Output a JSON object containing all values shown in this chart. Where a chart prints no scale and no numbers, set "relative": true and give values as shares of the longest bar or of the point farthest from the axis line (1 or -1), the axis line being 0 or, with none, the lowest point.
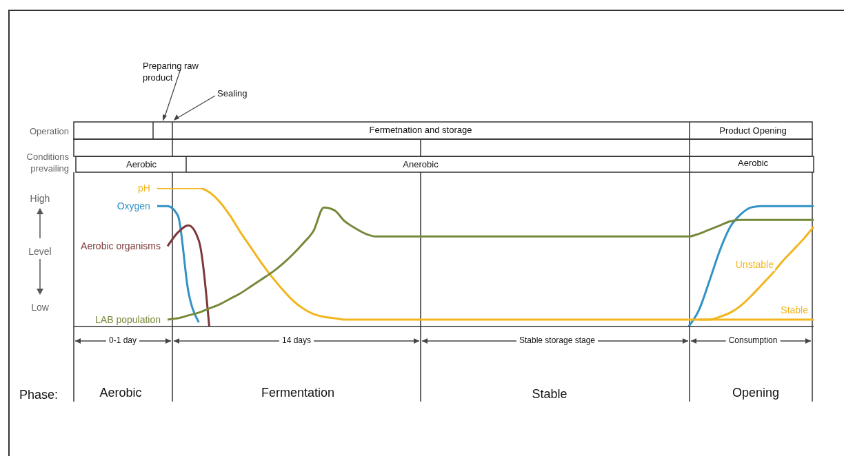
{
  "chart_data": {
    "type": "line",
    "relative": true,
    "ylabel": "Level",
    "legend": false,
    "grid": false,
    "categories": [
      null,
      null,
      null,
      null,
      null,
      null,
      null,
      null,
      null,
      null,
      null,
      null,
      null,
      null,
      null,
      null,
      null,
      null,
      null,
      null,
      null,
      null,
      null,
      null,
      null,
      null,
      null,
      null,
      null,
      null,
      null,
      null,
      null,
      null,
      null,
      null,
      null,
      null,
      null,
      null,
      null,
      null,
      null,
      null,
      null,
      null,
      null,
      null,
      null,
      null,
      null,
      null,
      null,
      null,
      null,
      null,
      null,
      null,
      null,
      null,
      null,
      null,
      null,
      null,
      null,
      null,
      null,
      null,
      null,
      null,
      null,
      null
    ],
    "series": [
      {
        "name": "pH",
        "color": "#f2b51e",
        "values": [
          null,
          null,
          null,
          null,
          null,
          null,
          null,
          null,
          1,
          1,
          1,
          1,
          1,
          0.97,
          0.9,
          0.8,
          0.68,
          0.57,
          0.46,
          0.36,
          0.27,
          0.19,
          0.13,
          0.09,
          0.07,
          0.06,
          0.05,
          0.05,
          0.05,
          0.05,
          0.05,
          0.05,
          0.05,
          0.05,
          0.05,
          0.05,
          0.05,
          0.05,
          0.05,
          0.05,
          0.05,
          0.05,
          0.05,
          0.05,
          0.05,
          0.05,
          0.05,
          0.05,
          0.05,
          0.05,
          0.05,
          0.05,
          0.05,
          0.05,
          0.05,
          0.05,
          0.05,
          0.05,
          0.05,
          0.05,
          null,
          null,
          null,
          null,
          null,
          null,
          null,
          null,
          null,
          null,
          null,
          null
        ]
      },
      {
        "name": "Oxygen",
        "color": "#3192c6",
        "values": [
          null,
          null,
          null,
          null,
          null,
          null,
          null,
          null,
          0.87,
          0.87,
          0.8,
          0.25,
          0.03,
          null,
          null,
          null,
          null,
          null,
          null,
          null,
          null,
          null,
          null,
          null,
          null,
          null,
          null,
          null,
          null,
          null,
          null,
          null,
          null,
          null,
          null,
          null,
          null,
          null,
          null,
          null,
          null,
          null,
          null,
          null,
          null,
          null,
          null,
          null,
          null,
          null,
          null,
          null,
          null,
          null,
          null,
          null,
          null,
          null,
          null,
          0,
          0.12,
          0.33,
          0.55,
          0.72,
          0.81,
          0.86,
          0.87,
          0.87,
          0.87,
          0.87,
          0.87,
          0.87
        ]
      },
      {
        "name": "Aerobic organisms",
        "color": "#7b3838",
        "values": [
          null,
          null,
          null,
          null,
          null,
          null,
          null,
          null,
          null,
          0.58,
          0.68,
          0.73,
          0.62,
          0,
          null,
          null,
          null,
          null,
          null,
          null,
          null,
          null,
          null,
          null,
          null,
          null,
          null,
          null,
          null,
          null,
          null,
          null,
          null,
          null,
          null,
          null,
          null,
          null,
          null,
          null,
          null,
          null,
          null,
          null,
          null,
          null,
          null,
          null,
          null,
          null,
          null,
          null,
          null,
          null,
          null,
          null,
          null,
          null,
          null,
          null,
          null,
          null,
          null,
          null,
          null,
          null,
          null,
          null,
          null,
          null,
          null,
          null
        ]
      },
      {
        "name": "LAB population",
        "color": "#76893a",
        "values": [
          null,
          null,
          null,
          null,
          null,
          null,
          null,
          null,
          null,
          0.05,
          0.06,
          0.08,
          0.1,
          0.13,
          0.16,
          0.2,
          0.24,
          0.29,
          0.34,
          0.39,
          0.45,
          0.52,
          0.6,
          0.69,
          0.86,
          0.84,
          0.76,
          0.71,
          0.67,
          0.65,
          0.65,
          0.65,
          0.65,
          0.65,
          0.65,
          0.65,
          0.65,
          0.65,
          0.65,
          0.65,
          0.65,
          0.65,
          0.65,
          0.65,
          0.65,
          0.65,
          0.65,
          0.65,
          0.65,
          0.65,
          0.65,
          0.65,
          0.65,
          0.65,
          0.65,
          0.65,
          0.65,
          0.65,
          0.65,
          0.65,
          0.67,
          0.7,
          0.73,
          0.76,
          0.77,
          0.77,
          0.77,
          0.77,
          0.77,
          0.77,
          0.77,
          0.77
        ]
      },
      {
        "name": "Stable",
        "color": "#f2b51e",
        "values": [
          null,
          null,
          null,
          null,
          null,
          null,
          null,
          null,
          null,
          null,
          null,
          null,
          null,
          null,
          null,
          null,
          null,
          null,
          null,
          null,
          null,
          null,
          null,
          null,
          null,
          null,
          null,
          null,
          null,
          null,
          null,
          null,
          null,
          null,
          null,
          null,
          null,
          null,
          null,
          null,
          null,
          null,
          null,
          null,
          null,
          null,
          null,
          null,
          null,
          null,
          null,
          null,
          null,
          null,
          null,
          null,
          null,
          null,
          null,
          0.05,
          0.05,
          0.05,
          0.05,
          0.05,
          0.05,
          0.05,
          0.05,
          0.05,
          0.05,
          0.05,
          0.05,
          0.05
        ]
      },
      {
        "name": "Unstable",
        "color": "#f2b51e",
        "values": [
          null,
          null,
          null,
          null,
          null,
          null,
          null,
          null,
          null,
          null,
          null,
          null,
          null,
          null,
          null,
          null,
          null,
          null,
          null,
          null,
          null,
          null,
          null,
          null,
          null,
          null,
          null,
          null,
          null,
          null,
          null,
          null,
          null,
          null,
          null,
          null,
          null,
          null,
          null,
          null,
          null,
          null,
          null,
          null,
          null,
          null,
          null,
          null,
          null,
          null,
          null,
          null,
          null,
          null,
          null,
          null,
          null,
          null,
          null,
          null,
          0.05,
          0.05,
          0.07,
          0.1,
          0.15,
          0.22,
          0.3,
          0.38,
          0.47,
          0.55,
          0.63,
          0.72
        ]
      }
    ],
    "annotations": [
      "Preparing raw product",
      "Sealing",
      "Operation",
      "Fermetnation and storage",
      "Product Opening",
      "Conditions prevailing",
      "Aerobic",
      "Anerobic",
      "Aerobic",
      "High",
      "Low",
      "0-1 day",
      "14 days",
      "Stable storage stage",
      "Consumption",
      "Phase:",
      "Aerobic",
      "Fermentation",
      "Stable",
      "Opening"
    ]
  }
}
